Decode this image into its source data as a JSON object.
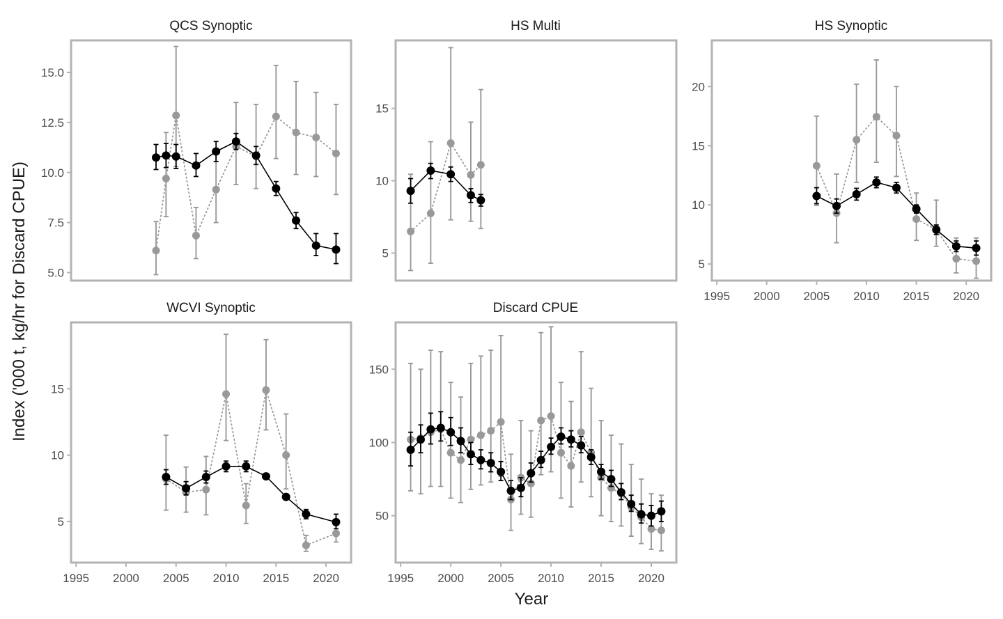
{
  "figure": {
    "ylabel": "Index ('000 t, kg/hr for Discard CPUE)",
    "xlabel": "Year"
  },
  "colors": {
    "model": "#000000",
    "observed": "#999999",
    "frame": "#b3b3b3",
    "tick_text": "#4d4d4d"
  },
  "chart_data": [
    {
      "type": "scatter",
      "title": "QCS Synoptic",
      "ylim": [
        4.6,
        16.6
      ],
      "yticks": [
        5.0,
        7.5,
        10.0,
        12.5,
        15.0
      ],
      "ytick_labels": [
        "5.0",
        "7.5",
        "10.0",
        "12.5",
        "15.0"
      ],
      "xlim": [
        1994.5,
        2022.5
      ],
      "xticks": [],
      "series": [
        {
          "role": "observed",
          "x": [
            2003,
            2004,
            2005,
            2007,
            2009,
            2011,
            2013,
            2015,
            2017,
            2019,
            2021
          ],
          "y": [
            6.1,
            9.7,
            12.85,
            6.85,
            9.15,
            11.3,
            10.8,
            12.8,
            12.0,
            11.75,
            10.95
          ],
          "lo": [
            4.9,
            7.8,
            10.3,
            5.7,
            7.5,
            9.4,
            9.2,
            10.7,
            9.9,
            9.8,
            8.9
          ],
          "hi": [
            7.55,
            12.0,
            16.3,
            8.25,
            11.1,
            13.5,
            13.4,
            15.35,
            14.55,
            14.0,
            13.4
          ]
        },
        {
          "role": "model",
          "x": [
            2003,
            2004,
            2005,
            2007,
            2009,
            2011,
            2013,
            2015,
            2017,
            2019,
            2021
          ],
          "y": [
            10.75,
            10.85,
            10.8,
            10.35,
            11.05,
            11.55,
            10.85,
            9.2,
            7.6,
            6.35,
            6.15
          ],
          "lo": [
            10.15,
            10.25,
            10.2,
            9.8,
            10.55,
            11.15,
            10.4,
            8.85,
            7.2,
            5.85,
            5.45
          ],
          "hi": [
            11.4,
            11.45,
            11.4,
            10.95,
            11.55,
            11.95,
            11.3,
            9.55,
            8.0,
            6.95,
            6.95
          ]
        }
      ]
    },
    {
      "type": "scatter",
      "title": "HS Multi",
      "ylim": [
        3.1,
        19.7
      ],
      "yticks": [
        5,
        10,
        15
      ],
      "ytick_labels": [
        "5",
        "10",
        "15"
      ],
      "xlim": [
        1994.5,
        2022.5
      ],
      "xticks": [],
      "series": [
        {
          "role": "observed",
          "x": [
            1996,
            1998,
            2000,
            2002,
            2003
          ],
          "y": [
            6.5,
            7.75,
            12.6,
            10.4,
            11.1
          ],
          "lo": [
            3.8,
            4.3,
            7.3,
            7.2,
            6.7
          ],
          "hi": [
            10.45,
            12.7,
            19.2,
            14.05,
            16.3
          ]
        },
        {
          "role": "model",
          "x": [
            1996,
            1998,
            2000,
            2002,
            2003
          ],
          "y": [
            9.3,
            10.7,
            10.45,
            9.0,
            8.65
          ],
          "lo": [
            8.45,
            10.15,
            9.95,
            8.5,
            8.25
          ],
          "hi": [
            10.15,
            11.2,
            10.95,
            9.45,
            9.05
          ]
        }
      ]
    },
    {
      "type": "scatter",
      "title": "HS Synoptic",
      "ylim": [
        3.6,
        23.9
      ],
      "yticks": [
        5,
        10,
        15,
        20
      ],
      "ytick_labels": [
        "5",
        "10",
        "15",
        "20"
      ],
      "xlim": [
        1994.5,
        2022.5
      ],
      "xticks": [
        1995,
        2000,
        2005,
        2010,
        2015,
        2020
      ],
      "series": [
        {
          "role": "observed",
          "x": [
            2005,
            2007,
            2009,
            2011,
            2013,
            2015,
            2017,
            2019,
            2021
          ],
          "y": [
            13.3,
            9.3,
            15.5,
            17.45,
            15.85,
            8.8,
            7.9,
            5.45,
            5.25
          ],
          "lo": [
            9.95,
            6.8,
            11.9,
            13.6,
            12.4,
            7.0,
            6.5,
            4.25,
            3.8
          ],
          "hi": [
            17.5,
            12.6,
            20.2,
            22.25,
            20.0,
            11.0,
            10.4,
            7.2,
            7.2
          ]
        },
        {
          "role": "model",
          "x": [
            2005,
            2007,
            2009,
            2011,
            2013,
            2015,
            2017,
            2019,
            2021
          ],
          "y": [
            10.75,
            9.9,
            10.9,
            11.9,
            11.45,
            9.65,
            7.9,
            6.5,
            6.35
          ],
          "lo": [
            10.1,
            9.3,
            10.4,
            11.45,
            11.0,
            9.3,
            7.5,
            6.05,
            5.75
          ],
          "hi": [
            11.45,
            10.5,
            11.4,
            12.35,
            11.9,
            10.0,
            8.3,
            6.95,
            6.95
          ]
        }
      ]
    },
    {
      "type": "scatter",
      "title": "WCVI Synoptic",
      "ylim": [
        1.9,
        20.0
      ],
      "yticks": [
        5,
        10,
        15
      ],
      "ytick_labels": [
        "5",
        "10",
        "15"
      ],
      "xlim": [
        1994.5,
        2022.5
      ],
      "xticks": [
        1995,
        2000,
        2005,
        2010,
        2015,
        2020
      ],
      "series": [
        {
          "role": "observed",
          "x": [
            2004,
            2006,
            2008,
            2010,
            2012,
            2014,
            2016,
            2018,
            2021
          ],
          "y": [
            8.2,
            7.2,
            7.4,
            14.6,
            6.2,
            14.9,
            10.0,
            3.2,
            4.1
          ],
          "lo": [
            5.85,
            5.7,
            5.5,
            11.1,
            4.85,
            11.9,
            7.45,
            2.75,
            3.45
          ],
          "hi": [
            11.5,
            9.1,
            9.9,
            19.1,
            7.85,
            18.7,
            13.1,
            3.95,
            4.85
          ]
        },
        {
          "role": "model",
          "x": [
            2004,
            2006,
            2008,
            2010,
            2012,
            2014,
            2016,
            2018,
            2021
          ],
          "y": [
            8.35,
            7.5,
            8.35,
            9.15,
            9.15,
            8.4,
            6.85,
            5.55,
            4.95
          ],
          "lo": [
            7.8,
            7.0,
            7.9,
            8.75,
            8.75,
            8.2,
            6.65,
            5.2,
            4.45
          ],
          "hi": [
            8.9,
            8.0,
            8.8,
            9.55,
            9.55,
            8.6,
            7.05,
            5.9,
            5.55
          ]
        }
      ]
    },
    {
      "type": "scatter",
      "title": "Discard CPUE",
      "ylim": [
        18,
        182
      ],
      "yticks": [
        50,
        100,
        150
      ],
      "ytick_labels": [
        "50",
        "100",
        "150"
      ],
      "xlim": [
        1994.5,
        2022.5
      ],
      "xticks": [
        1995,
        2000,
        2005,
        2010,
        2015,
        2020
      ],
      "series": [
        {
          "role": "observed",
          "x": [
            1996,
            1997,
            1998,
            1999,
            2000,
            2001,
            2002,
            2003,
            2004,
            2005,
            2006,
            2007,
            2008,
            2009,
            2010,
            2011,
            2012,
            2013,
            2014,
            2015,
            2016,
            2017,
            2018,
            2019,
            2020,
            2021
          ],
          "y": [
            102,
            103,
            107,
            109,
            93,
            88,
            102,
            105,
            108,
            114,
            61,
            76,
            72,
            115,
            118,
            93,
            84,
            107,
            93,
            76,
            69,
            65,
            56,
            49,
            41,
            40
          ],
          "lo": [
            67,
            65,
            70,
            70,
            62,
            59,
            68,
            71,
            73,
            77,
            40,
            51,
            49,
            78,
            80,
            62,
            56,
            73,
            63,
            50,
            46,
            43,
            36,
            31,
            27,
            26
          ],
          "hi": [
            154,
            150,
            163,
            162,
            141,
            131,
            154,
            159,
            163,
            173,
            92,
            115,
            108,
            175,
            179,
            141,
            128,
            162,
            137,
            115,
            105,
            99,
            85,
            75,
            65,
            64
          ]
        },
        {
          "role": "model",
          "x": [
            1996,
            1997,
            1998,
            1999,
            2000,
            2001,
            2002,
            2003,
            2004,
            2005,
            2006,
            2007,
            2008,
            2009,
            2010,
            2011,
            2012,
            2013,
            2014,
            2015,
            2016,
            2017,
            2018,
            2019,
            2020,
            2021
          ],
          "y": [
            95,
            102,
            109,
            110,
            107,
            101,
            92,
            88,
            86,
            80,
            67,
            69,
            79,
            88,
            97,
            104,
            102,
            98,
            90,
            80,
            75,
            66,
            58,
            51,
            50,
            53
          ],
          "lo": [
            84,
            93,
            99,
            101,
            98,
            93,
            85,
            82,
            80,
            74,
            61,
            63,
            73,
            83,
            92,
            99,
            97,
            93,
            85,
            75,
            70,
            61,
            53,
            45,
            43,
            46
          ],
          "hi": [
            107,
            112,
            120,
            121,
            117,
            110,
            100,
            95,
            93,
            87,
            74,
            76,
            86,
            94,
            103,
            110,
            108,
            104,
            95,
            85,
            81,
            72,
            64,
            58,
            57,
            60
          ]
        }
      ]
    }
  ]
}
